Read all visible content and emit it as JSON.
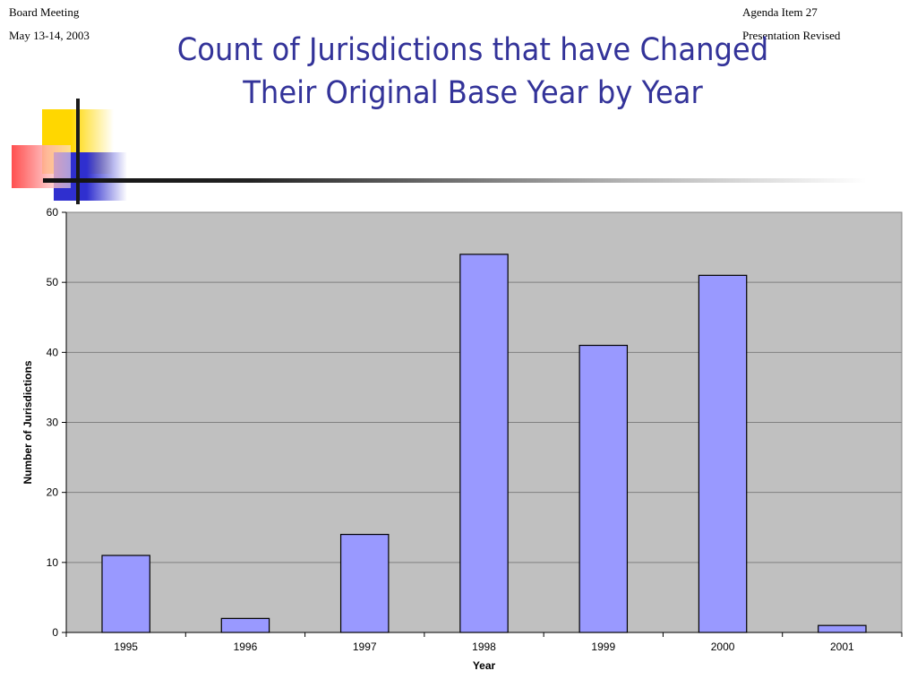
{
  "header": {
    "left_line1": "Board Meeting",
    "left_line2": "May 13-14, 2003",
    "right_line1": "Agenda Item 27",
    "right_line2": "Presentation Revised"
  },
  "title": {
    "line1": "Count of Jurisdictions that have Changed",
    "line2": "Their Original Base Year by Year"
  },
  "colors": {
    "title": "#333399",
    "bar_fill": "#9999ff",
    "plot_background": "#c0c0c0",
    "grid": "#808080"
  },
  "chart_data": {
    "type": "bar",
    "title": "",
    "xlabel": "Year",
    "ylabel": "Number of Jurisdictions",
    "categories": [
      "1995",
      "1996",
      "1997",
      "1998",
      "1999",
      "2000",
      "2001"
    ],
    "values": [
      11,
      2,
      14,
      54,
      41,
      51,
      1
    ],
    "ylim": [
      0,
      60
    ],
    "yticks": [
      0,
      10,
      20,
      30,
      40,
      50,
      60
    ],
    "grid": true,
    "legend": "none"
  }
}
